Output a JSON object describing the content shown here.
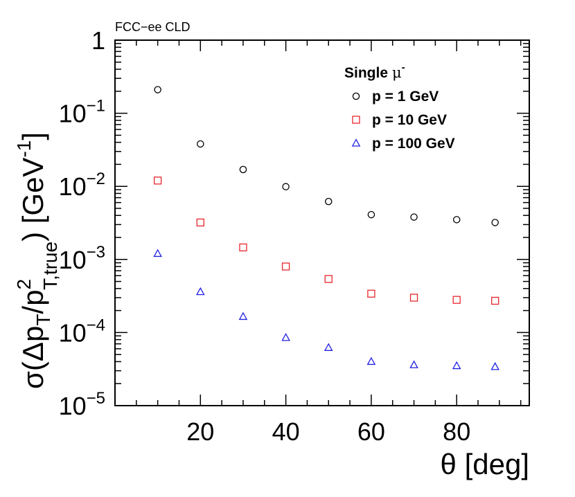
{
  "chart_data": {
    "type": "scatter",
    "experiment_label": "FCC−ee CLD",
    "xlabel": "θ [deg]",
    "ylabel_parts": {
      "open": "σ(Δp",
      "sub_t": "T",
      "slash": "/p",
      "sup_2": "2",
      "sub_ttrue": "T,true",
      "close": ") [GeV",
      "sup_minus1": "-1",
      "end": "]"
    },
    "xlim": [
      0,
      97
    ],
    "ylim": [
      1e-05,
      1
    ],
    "yscale": "log",
    "x_ticks": [
      {
        "value": 20,
        "label": "20"
      },
      {
        "value": 40,
        "label": "40"
      },
      {
        "value": 60,
        "label": "60"
      },
      {
        "value": 80,
        "label": "80"
      }
    ],
    "y_ticks": [
      {
        "exp": 0,
        "base": "1",
        "sup": ""
      },
      {
        "exp": -1,
        "base": "10",
        "sup": "−1"
      },
      {
        "exp": -2,
        "base": "10",
        "sup": "−2"
      },
      {
        "exp": -3,
        "base": "10",
        "sup": "−3"
      },
      {
        "exp": -4,
        "base": "10",
        "sup": "−4"
      },
      {
        "exp": -5,
        "base": "10",
        "sup": "−5"
      }
    ],
    "legend": {
      "title": "Single",
      "title_symbol": "μ",
      "title_sup": "-",
      "position": "top-right"
    },
    "series": [
      {
        "name": "p = 1 GeV",
        "marker": "circle",
        "color": "#000000",
        "x": [
          10,
          20,
          30,
          40,
          50,
          60,
          70,
          80,
          89
        ],
        "values": [
          0.21,
          0.038,
          0.017,
          0.0099,
          0.0062,
          0.0041,
          0.0038,
          0.0035,
          0.0032
        ]
      },
      {
        "name": "p = 10 GeV",
        "marker": "square",
        "color": "#e8262a",
        "x": [
          10,
          20,
          30,
          40,
          50,
          60,
          70,
          80,
          89
        ],
        "values": [
          0.012,
          0.0032,
          0.00146,
          0.0008,
          0.00054,
          0.00034,
          0.0003,
          0.00028,
          0.000272
        ]
      },
      {
        "name": "p = 100 GeV",
        "marker": "triangle",
        "color": "#2020e0",
        "x": [
          10,
          20,
          30,
          40,
          50,
          60,
          70,
          80,
          89
        ],
        "values": [
          0.0012,
          0.00036,
          0.000165,
          8.5e-05,
          6.2e-05,
          4e-05,
          3.6e-05,
          3.5e-05,
          3.4e-05
        ]
      }
    ]
  }
}
